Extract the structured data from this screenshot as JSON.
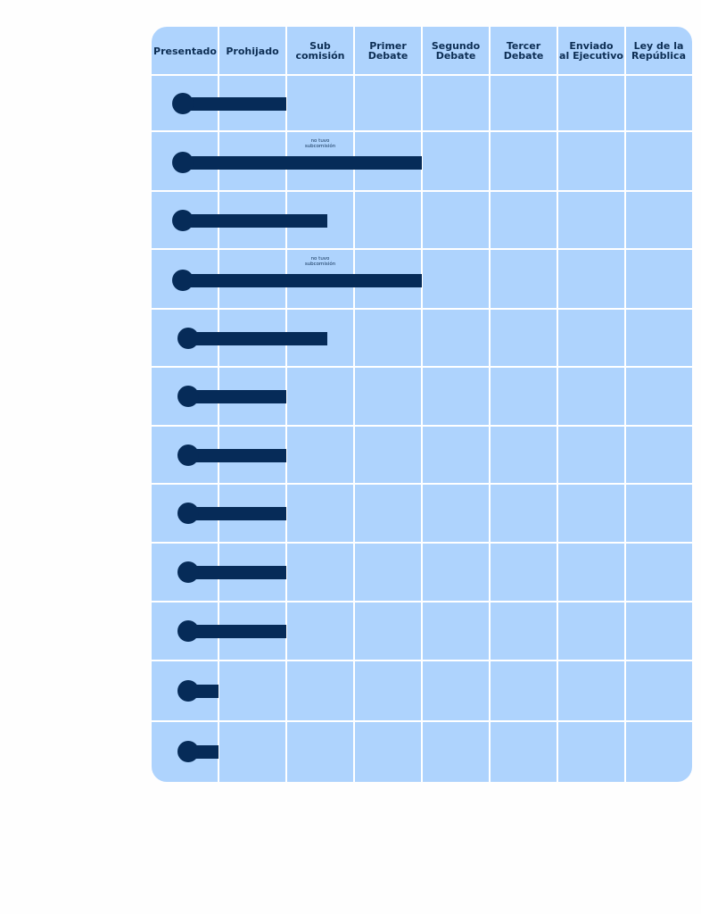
{
  "chart_data": {
    "type": "bar",
    "orientation": "horizontal",
    "stages": [
      "Presentado",
      "Prohijado",
      "Sub\ncomisión",
      "Primer\nDebate",
      "Segundo\nDebate",
      "Tercer\nDebate",
      "Enviado\nal Ejecutivo",
      "Ley de la\nRepública"
    ],
    "progress": [
      2,
      4,
      2.6,
      4,
      2.6,
      2,
      2,
      2,
      2,
      2,
      1,
      1
    ],
    "notes": [
      {
        "row": 1,
        "text": "no tuvo\nsubcomisión"
      },
      {
        "row": 3,
        "text": "no tuvo\nsubcomisión"
      }
    ],
    "colors": {
      "bar": "#062b58",
      "panel": "#aed3fd",
      "grid": "#ffffff",
      "header_text": "#0d2e54"
    }
  }
}
